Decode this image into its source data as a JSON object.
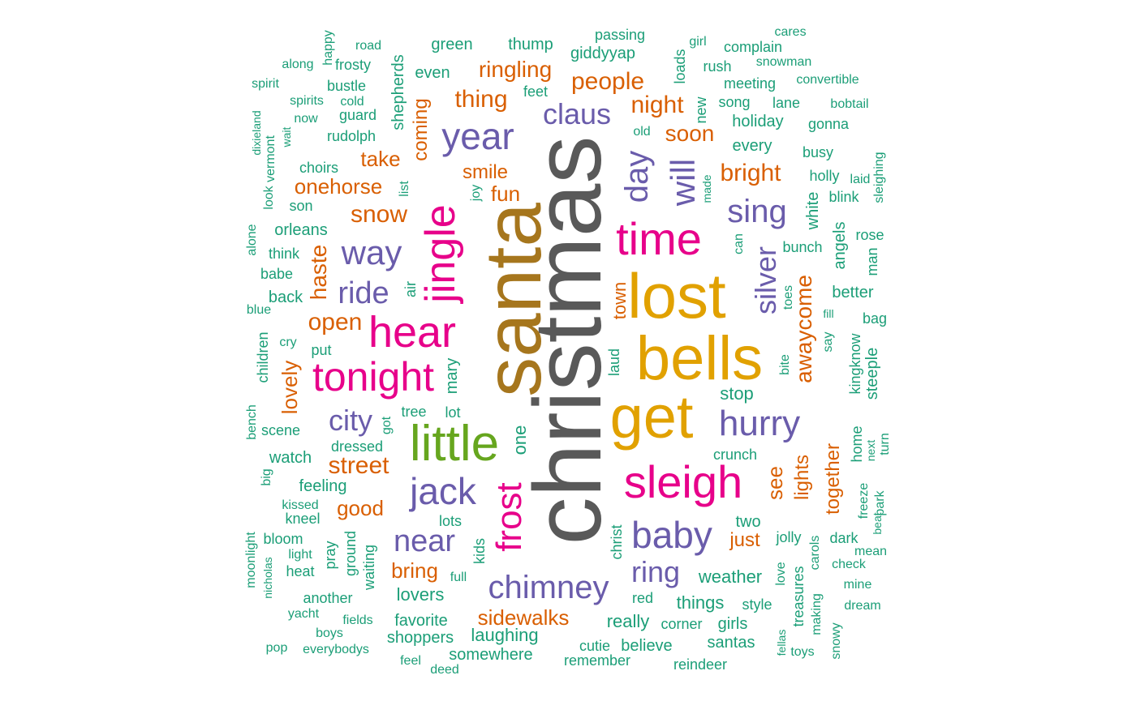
{
  "palette": {
    "grey": "#595959",
    "gold": "#E1A100",
    "brown": "#A6761D",
    "pink": "#E7008A",
    "green": "#66A61E",
    "purple": "#6A5CAB",
    "orange": "#D95F02",
    "teal": "#1B9E77"
  },
  "words": [
    {
      "t": "christmas"
    },
    {
      "t": "santa"
    },
    {
      "t": "lost"
    },
    {
      "t": "bells"
    },
    {
      "t": "get"
    },
    {
      "t": "little"
    },
    {
      "t": "jingle"
    },
    {
      "t": "hear"
    },
    {
      "t": "time"
    },
    {
      "t": "sleigh"
    },
    {
      "t": "tonight"
    },
    {
      "t": "jack"
    },
    {
      "t": "year"
    },
    {
      "t": "frost"
    },
    {
      "t": "baby"
    },
    {
      "t": "hurry"
    },
    {
      "t": "day"
    },
    {
      "t": "will"
    },
    {
      "t": "way"
    },
    {
      "t": "chimney"
    },
    {
      "t": "ride"
    },
    {
      "t": "sing"
    },
    {
      "t": "near"
    },
    {
      "t": "silver"
    },
    {
      "t": "ring"
    },
    {
      "t": "claus"
    },
    {
      "t": "city"
    },
    {
      "t": "snow"
    },
    {
      "t": "open"
    },
    {
      "t": "haste"
    },
    {
      "t": "people"
    },
    {
      "t": "thing"
    },
    {
      "t": "night"
    },
    {
      "t": "street"
    },
    {
      "t": "bright"
    },
    {
      "t": "ringling"
    },
    {
      "t": "soon"
    },
    {
      "t": "lovely"
    },
    {
      "t": "awaycome"
    },
    {
      "t": "fun"
    },
    {
      "t": "onehorse"
    },
    {
      "t": "good"
    },
    {
      "t": "sidewalks"
    },
    {
      "t": "smile"
    },
    {
      "t": "bring"
    },
    {
      "t": "take"
    },
    {
      "t": "coming"
    },
    {
      "t": "see"
    },
    {
      "t": "town"
    },
    {
      "t": "together"
    },
    {
      "t": "lights"
    },
    {
      "t": "just"
    },
    {
      "t": "one"
    },
    {
      "t": "weather"
    },
    {
      "t": "laughing"
    },
    {
      "t": "lovers"
    },
    {
      "t": "things"
    },
    {
      "t": "really"
    },
    {
      "t": "giddyyap"
    },
    {
      "t": "thump"
    },
    {
      "t": "green"
    },
    {
      "t": "passing"
    },
    {
      "t": "even"
    },
    {
      "t": "shepherds"
    },
    {
      "t": "bustle"
    },
    {
      "t": "frosty"
    },
    {
      "t": "road"
    },
    {
      "t": "happy"
    },
    {
      "t": "along"
    },
    {
      "t": "spirit"
    },
    {
      "t": "spirits"
    },
    {
      "t": "cold"
    },
    {
      "t": "now"
    },
    {
      "t": "guard"
    },
    {
      "t": "rudolph"
    },
    {
      "t": "feet"
    },
    {
      "t": "choirs"
    },
    {
      "t": "son"
    },
    {
      "t": "orleans"
    },
    {
      "t": "think"
    },
    {
      "t": "babe"
    },
    {
      "t": "back"
    },
    {
      "t": "put"
    },
    {
      "t": "blue"
    },
    {
      "t": "cry"
    },
    {
      "t": "children"
    },
    {
      "t": "alone"
    },
    {
      "t": "look"
    },
    {
      "t": "vermont"
    },
    {
      "t": "dixieland"
    },
    {
      "t": "wait"
    },
    {
      "t": "list"
    },
    {
      "t": "joy"
    },
    {
      "t": "air"
    },
    {
      "t": "mary"
    },
    {
      "t": "lot"
    },
    {
      "t": "tree"
    },
    {
      "t": "got"
    },
    {
      "t": "dressed"
    },
    {
      "t": "scene"
    },
    {
      "t": "bench"
    },
    {
      "t": "watch"
    },
    {
      "t": "big"
    },
    {
      "t": "feeling"
    },
    {
      "t": "kissed"
    },
    {
      "t": "kneel"
    },
    {
      "t": "moonlight"
    },
    {
      "t": "bloom"
    },
    {
      "t": "light"
    },
    {
      "t": "nicholas"
    },
    {
      "t": "heat"
    },
    {
      "t": "pray"
    },
    {
      "t": "ground"
    },
    {
      "t": "waiting"
    },
    {
      "t": "another"
    },
    {
      "t": "yacht"
    },
    {
      "t": "fields"
    },
    {
      "t": "boys"
    },
    {
      "t": "pop"
    },
    {
      "t": "everybodys"
    },
    {
      "t": "favorite"
    },
    {
      "t": "shoppers"
    },
    {
      "t": "feel"
    },
    {
      "t": "deed"
    },
    {
      "t": "somewhere"
    },
    {
      "t": "lots"
    },
    {
      "t": "kids"
    },
    {
      "t": "full"
    },
    {
      "t": "cutie"
    },
    {
      "t": "remember"
    },
    {
      "t": "believe"
    },
    {
      "t": "reindeer"
    },
    {
      "t": "santas"
    },
    {
      "t": "corner"
    },
    {
      "t": "girls"
    },
    {
      "t": "red"
    },
    {
      "t": "christ"
    },
    {
      "t": "style"
    },
    {
      "t": "two"
    },
    {
      "t": "jolly"
    },
    {
      "t": "crunch"
    },
    {
      "t": "stop"
    },
    {
      "t": "laud"
    },
    {
      "t": "old"
    },
    {
      "t": "new"
    },
    {
      "t": "loads"
    },
    {
      "t": "girl"
    },
    {
      "t": "rush"
    },
    {
      "t": "complain"
    },
    {
      "t": "meeting"
    },
    {
      "t": "song"
    },
    {
      "t": "holiday"
    },
    {
      "t": "every"
    },
    {
      "t": "made"
    },
    {
      "t": "can"
    },
    {
      "t": "cares"
    },
    {
      "t": "snowman"
    },
    {
      "t": "convertible"
    },
    {
      "t": "lane"
    },
    {
      "t": "bobtail"
    },
    {
      "t": "gonna"
    },
    {
      "t": "busy"
    },
    {
      "t": "holly"
    },
    {
      "t": "laid"
    },
    {
      "t": "blink"
    },
    {
      "t": "sleighing"
    },
    {
      "t": "white"
    },
    {
      "t": "angels"
    },
    {
      "t": "rose"
    },
    {
      "t": "bunch"
    },
    {
      "t": "man"
    },
    {
      "t": "toes"
    },
    {
      "t": "better"
    },
    {
      "t": "fill"
    },
    {
      "t": "bag"
    },
    {
      "t": "say"
    },
    {
      "t": "kingknow"
    },
    {
      "t": "steeple"
    },
    {
      "t": "bite"
    },
    {
      "t": "home"
    },
    {
      "t": "next"
    },
    {
      "t": "turn"
    },
    {
      "t": "freeze"
    },
    {
      "t": "park"
    },
    {
      "t": "beat"
    },
    {
      "t": "dark"
    },
    {
      "t": "mean"
    },
    {
      "t": "check"
    },
    {
      "t": "carols"
    },
    {
      "t": "love"
    },
    {
      "t": "treasures"
    },
    {
      "t": "making"
    },
    {
      "t": "mine"
    },
    {
      "t": "dream"
    },
    {
      "t": "snowy"
    },
    {
      "t": "toys"
    },
    {
      "t": "fellas"
    }
  ]
}
